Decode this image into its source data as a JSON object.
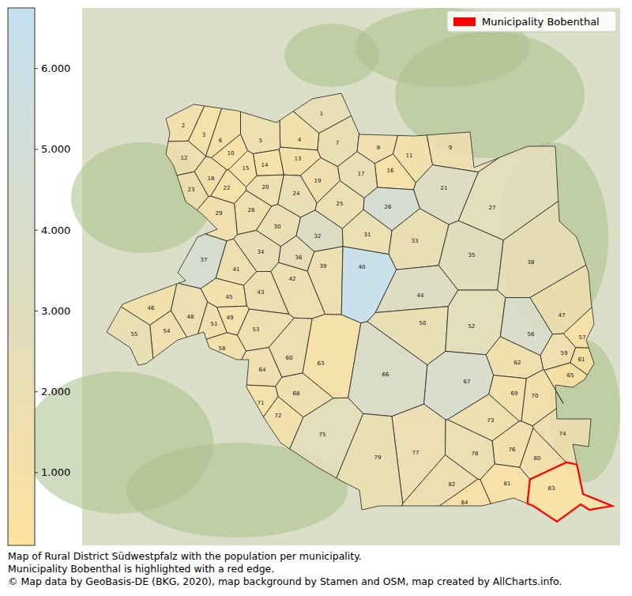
{
  "chart_data": {
    "type": "choropleth",
    "caption": [
      "Map of Rural District Südwestpfalz with the population per municipality.",
      "Municipality Bobenthal is highlighted with a red edge.",
      "© Map data by GeoBasis-DE (BKG, 2020), map background by Stamen and OSM, map created by AllCharts.info."
    ],
    "categories": [
      "1",
      "2",
      "3",
      "4",
      "5",
      "6",
      "7",
      "8",
      "9",
      "10",
      "11",
      "12",
      "13",
      "14",
      "15",
      "16",
      "17",
      "18",
      "19",
      "20",
      "21",
      "22",
      "23",
      "24",
      "25",
      "26",
      "27",
      "28",
      "29",
      "30",
      "31",
      "32",
      "33",
      "34",
      "35",
      "36",
      "37",
      "38",
      "39",
      "40",
      "41",
      "42",
      "43",
      "44",
      "45",
      "46",
      "47",
      "48",
      "49",
      "50",
      "51",
      "52",
      "53",
      "54",
      "55",
      "56",
      "57",
      "58",
      "59",
      "60",
      "61",
      "62",
      "63",
      "64",
      "65",
      "66",
      "67",
      "68",
      "69",
      "70",
      "71",
      "72",
      "73",
      "74",
      "75",
      "76",
      "77",
      "78",
      "79",
      "80",
      "81",
      "82",
      "83",
      "84"
    ],
    "values": [
      2000,
      1000,
      600,
      900,
      1300,
      800,
      1900,
      1200,
      1500,
      500,
      900,
      1500,
      800,
      600,
      700,
      400,
      2000,
      1000,
      1200,
      1300,
      3200,
      600,
      1400,
      1800,
      1700,
      4600,
      2500,
      1300,
      1000,
      1800,
      1700,
      3300,
      1800,
      2200,
      2700,
      2200,
      4300,
      2300,
      1500,
      6600,
      1500,
      1500,
      1500,
      3200,
      900,
      900,
      1500,
      1600,
      700,
      1900,
      1100,
      2400,
      1300,
      1200,
      1900,
      4000,
      500,
      800,
      1200,
      1500,
      400,
      1100,
      600,
      1200,
      400,
      3800,
      4200,
      1300,
      900,
      1000,
      600,
      900,
      1300,
      1500,
      2400,
      1000,
      1600,
      1700,
      1800,
      1000,
      400,
      1500,
      300,
      400
    ],
    "color_range": [
      100,
      6750
    ],
    "color_ticks": [
      {
        "value": 1000,
        "label": "1.000"
      },
      {
        "value": 2000,
        "label": "2.000"
      },
      {
        "value": 3000,
        "label": "3.000"
      },
      {
        "value": 4000,
        "label": "4.000"
      },
      {
        "value": 5000,
        "label": "5.000"
      },
      {
        "value": 6000,
        "label": "6.000"
      }
    ],
    "highlight": {
      "name": "Municipality Bobenthal",
      "category": "83",
      "color": "#ff0000"
    },
    "legend": "upper right"
  }
}
